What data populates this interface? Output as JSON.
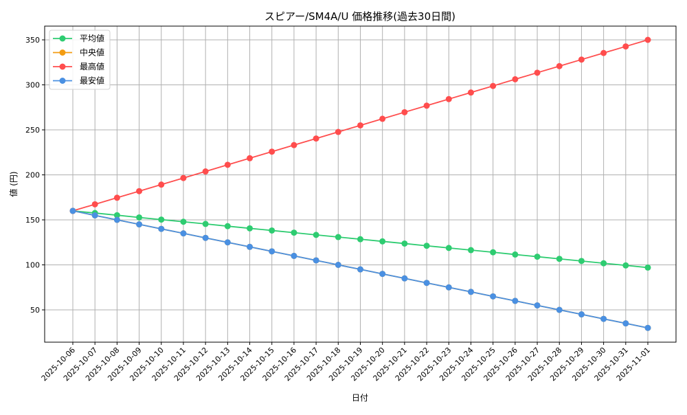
{
  "chart_data": {
    "type": "line",
    "title": "スピアー/SM4A/U 価格推移(過去30日間)",
    "xlabel": "日付",
    "ylabel": "値 (円)",
    "ylim": [
      20,
      365
    ],
    "yticks": [
      50,
      100,
      150,
      200,
      250,
      300,
      350
    ],
    "grid": true,
    "legend_position": "upper left",
    "categories": [
      "2025-10-06",
      "2025-10-07",
      "2025-10-08",
      "2025-10-09",
      "2025-10-10",
      "2025-10-11",
      "2025-10-12",
      "2025-10-13",
      "2025-10-14",
      "2025-10-15",
      "2025-10-16",
      "2025-10-17",
      "2025-10-18",
      "2025-10-19",
      "2025-10-20",
      "2025-10-21",
      "2025-10-22",
      "2025-10-23",
      "2025-10-24",
      "2025-10-25",
      "2025-10-26",
      "2025-10-27",
      "2025-10-28",
      "2025-10-29",
      "2025-10-30",
      "2025-10-31",
      "2025-11-01"
    ],
    "series": [
      {
        "name": "平均値",
        "color": "#2ecc71",
        "values": [
          160.0,
          157.6,
          155.2,
          152.7,
          150.3,
          147.9,
          145.5,
          143.0,
          140.6,
          138.2,
          135.8,
          133.3,
          130.9,
          128.5,
          126.1,
          123.7,
          121.2,
          118.8,
          116.4,
          114.0,
          111.5,
          109.1,
          106.7,
          104.3,
          101.8,
          99.4,
          97.0
        ]
      },
      {
        "name": "中央値",
        "color": "#f39c12",
        "values": [
          160,
          155,
          150,
          145,
          140,
          135,
          130,
          125,
          120,
          115,
          110,
          105,
          100,
          95,
          90,
          85,
          80,
          75,
          70,
          65,
          60,
          55,
          50,
          45,
          40,
          35,
          30
        ]
      },
      {
        "name": "最高値",
        "color": "#ff4d4d",
        "values": [
          160.0,
          167.3,
          174.6,
          181.9,
          189.2,
          196.5,
          203.8,
          211.2,
          218.5,
          225.8,
          233.1,
          240.4,
          247.7,
          255.0,
          262.3,
          269.6,
          276.9,
          284.2,
          291.5,
          298.8,
          306.2,
          313.5,
          320.8,
          328.1,
          335.4,
          342.7,
          350.0
        ]
      },
      {
        "name": "最安値",
        "color": "#4a90e2",
        "values": [
          160,
          155,
          150,
          145,
          140,
          135,
          130,
          125,
          120,
          115,
          110,
          105,
          100,
          95,
          90,
          85,
          80,
          75,
          70,
          65,
          60,
          55,
          50,
          45,
          40,
          35,
          30
        ]
      }
    ]
  }
}
